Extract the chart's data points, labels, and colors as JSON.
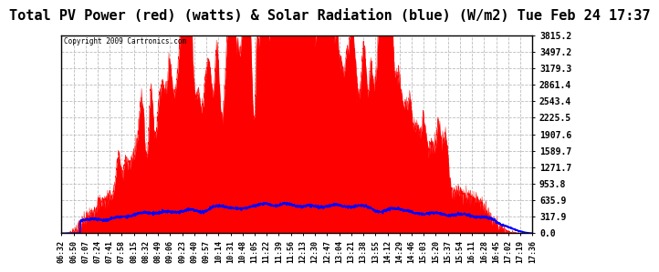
{
  "title": "Total PV Power (red) (watts) & Solar Radiation (blue) (W/m2) Tue Feb 24 17:37",
  "copyright_text": "Copyright 2009 Cartronics.com",
  "yticks": [
    0.0,
    317.9,
    635.9,
    953.8,
    1271.7,
    1589.7,
    1907.6,
    2225.5,
    2543.4,
    2861.4,
    3179.3,
    3497.2,
    3815.2
  ],
  "ymax": 3815.2,
  "ymin": 0.0,
  "xtick_labels": [
    "06:32",
    "06:50",
    "07:07",
    "07:24",
    "07:41",
    "07:58",
    "08:15",
    "08:32",
    "08:49",
    "09:06",
    "09:23",
    "09:40",
    "09:57",
    "10:14",
    "10:31",
    "10:48",
    "11:05",
    "11:22",
    "11:39",
    "11:56",
    "12:13",
    "12:30",
    "12:47",
    "13:04",
    "13:21",
    "13:38",
    "13:55",
    "14:12",
    "14:29",
    "14:46",
    "15:03",
    "15:20",
    "15:37",
    "15:54",
    "16:11",
    "16:28",
    "16:45",
    "17:02",
    "17:19",
    "17:36"
  ],
  "bg_color": "#ffffff",
  "plot_bg_color": "#ffffff",
  "grid_color": "#aaaaaa",
  "red_fill_color": "#ff0000",
  "blue_line_color": "#0000ff",
  "title_font_size": 11,
  "border_color": "#000000"
}
